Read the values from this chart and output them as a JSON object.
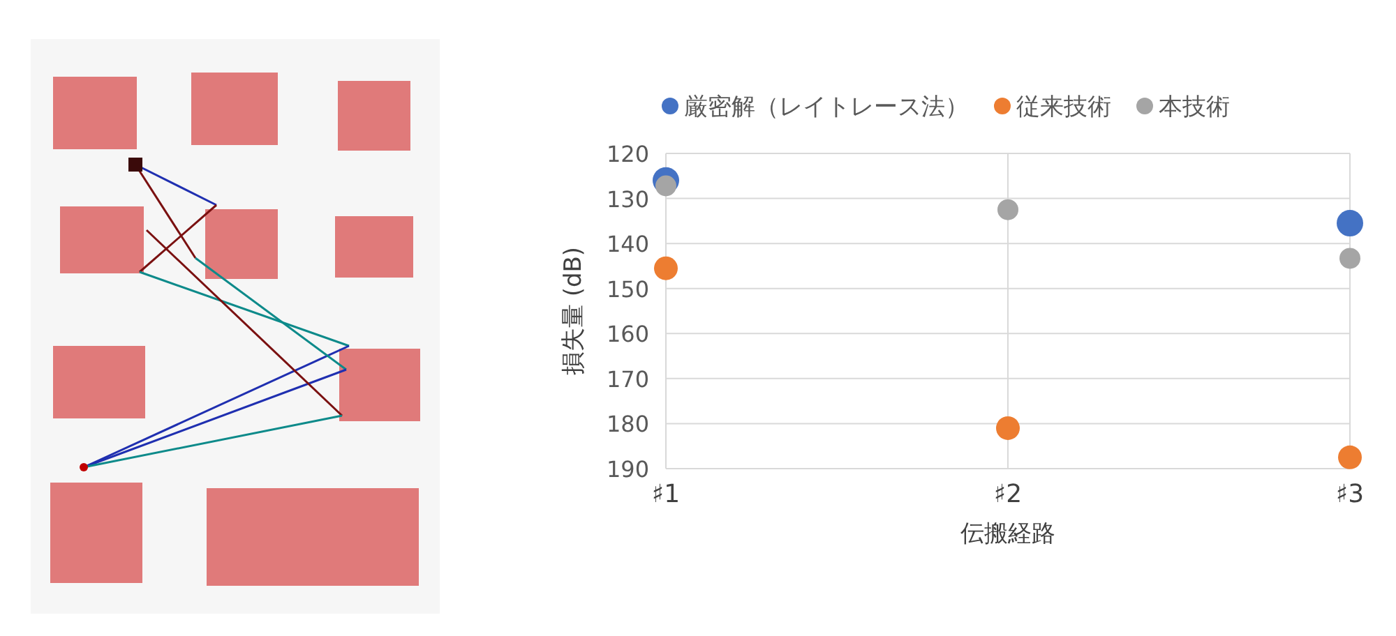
{
  "chart_data": {
    "type": "scatter",
    "xlabel": "伝搬経路",
    "ylabel": "損失量 (dB)",
    "categories": [
      "♯1",
      "♯2",
      "♯3"
    ],
    "series": [
      {
        "name": "厳密解（レイトレース法）",
        "color": "#4472c4",
        "values": [
          126,
          null,
          135.5
        ]
      },
      {
        "name": "従来技術",
        "color": "#ed7d31",
        "values": [
          145.5,
          181,
          187.5
        ]
      },
      {
        "name": "本技術",
        "color": "#a5a5a5",
        "values": [
          127.2,
          132.5,
          143.3
        ]
      }
    ],
    "ylim": [
      190,
      120
    ],
    "yticks": [
      120,
      130,
      140,
      150,
      160,
      170,
      180,
      190
    ],
    "grid": true,
    "legend": "top",
    "marker": "circle"
  }
}
